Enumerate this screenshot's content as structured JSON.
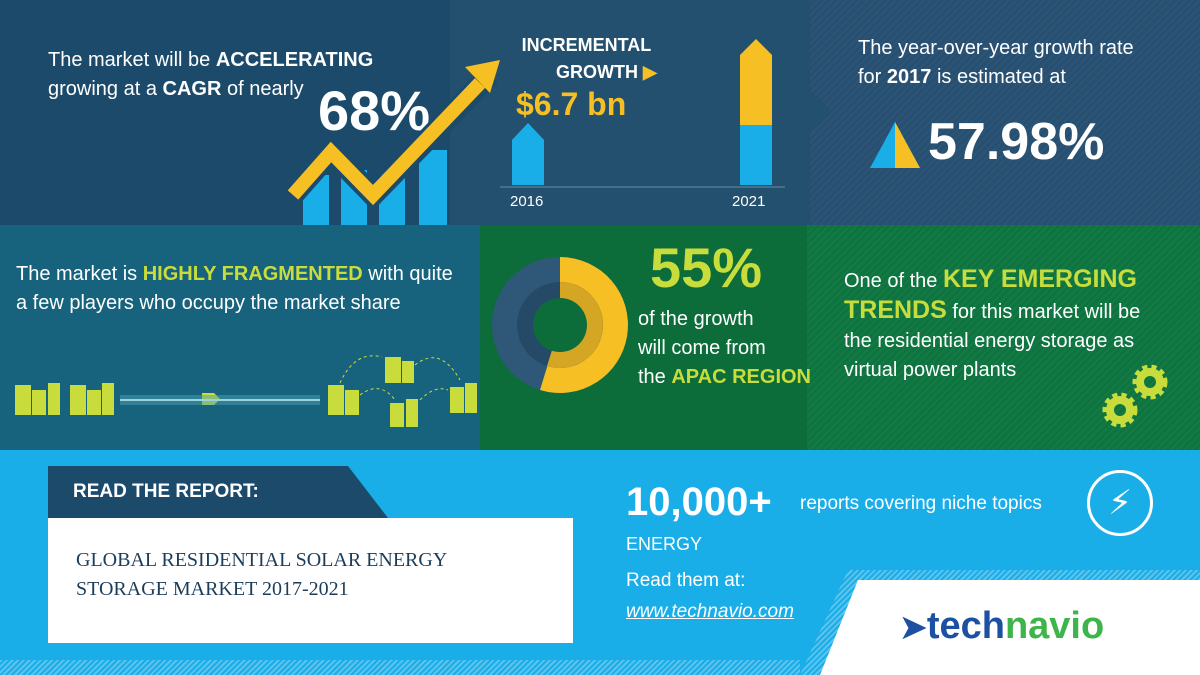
{
  "cagr": {
    "line1_pre": "The market will be ",
    "line1_bold": "ACCELERATING",
    "line2_pre": "growing at a ",
    "line2_bold": "CAGR",
    "line2_post": " of nearly",
    "value": "68%"
  },
  "incremental": {
    "label_line1": "INCREMENTAL",
    "label_line2": "GROWTH",
    "value": "$6.7 bn",
    "year_start": "2016",
    "year_end": "2021"
  },
  "yoy": {
    "line1": "The year-over-year growth rate",
    "line2_pre": "for ",
    "line2_bold": "2017",
    "line2_post": " is estimated at",
    "value": "57.98%"
  },
  "fragmented": {
    "pre": "The market is ",
    "bold": "HIGHLY FRAGMENTED",
    "post": " with quite a few players who occupy the market share"
  },
  "apac": {
    "value": "55%",
    "line1": "of the growth",
    "line2": "will come from",
    "line3_pre": "the ",
    "line3_bold": "APAC REGION",
    "share_percent": 55
  },
  "trends": {
    "pre": "One of the ",
    "bold1": "KEY EMERGING",
    "bold2": "TRENDS",
    "post1": " for this market will be",
    "line3": "the residential energy storage as",
    "line4": "virtual power plants"
  },
  "report": {
    "tab_label": "READ THE REPORT",
    "tab_colon": ":",
    "title_line1": "GLOBAL RESIDENTIAL SOLAR ENERGY",
    "title_line2": "STORAGE MARKET 2017-2021"
  },
  "promo": {
    "count": "10,000+",
    "count_desc": "reports covering niche topics",
    "category": "ENERGY",
    "read_at": "Read them at:",
    "link": "www.technavio.com"
  },
  "logo": {
    "part1": "tech",
    "part2": "navio"
  },
  "colors": {
    "yellow": "#f6c025",
    "blue": "#1aaee8",
    "lime": "#c8dd3c",
    "navy": "#1c4a6b"
  }
}
